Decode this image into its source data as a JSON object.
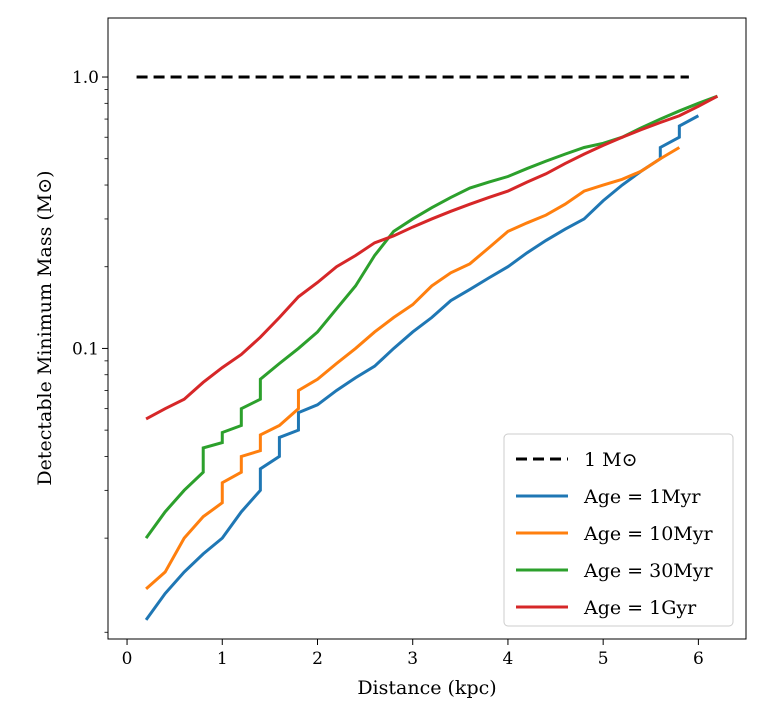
{
  "chart_data": {
    "type": "line",
    "title": "",
    "xlabel": "Distance (kpc)",
    "ylabel": "Detectable Minimum Mass (M⊙)",
    "xlim": [
      -0.2,
      6.5
    ],
    "ylim": [
      0.0085,
      1.65
    ],
    "yscale": "log",
    "grid": false,
    "legend_position": "lower-right",
    "xticks": [
      0,
      1,
      2,
      3,
      4,
      5,
      6
    ],
    "xtick_labels": [
      "0",
      "1",
      "2",
      "3",
      "4",
      "5",
      "6"
    ],
    "yticks": [
      0.1,
      1.0
    ],
    "ytick_labels": [
      "0.1",
      "1.0"
    ],
    "reference_line": {
      "name": "1 M⊙",
      "value": 1.0,
      "x_range": [
        0.1,
        5.9
      ],
      "color": "#000000",
      "dashed": true
    },
    "series": [
      {
        "name": "Age = 1Myr",
        "color": "#1f77b4",
        "x": [
          0.2,
          0.4,
          0.6,
          0.8,
          1.0,
          1.2,
          1.4,
          1.4,
          1.6,
          1.6,
          1.8,
          1.8,
          2.0,
          2.2,
          2.4,
          2.6,
          2.8,
          3.0,
          3.2,
          3.4,
          3.6,
          3.8,
          4.0,
          4.2,
          4.4,
          4.6,
          4.8,
          5.0,
          5.2,
          5.4,
          5.6,
          5.6,
          5.8,
          5.8,
          6.0
        ],
        "y": [
          0.01,
          0.0125,
          0.015,
          0.0175,
          0.02,
          0.025,
          0.03,
          0.036,
          0.04,
          0.047,
          0.05,
          0.058,
          0.062,
          0.07,
          0.078,
          0.086,
          0.1,
          0.115,
          0.13,
          0.15,
          0.165,
          0.182,
          0.2,
          0.225,
          0.25,
          0.275,
          0.3,
          0.35,
          0.4,
          0.45,
          0.5,
          0.55,
          0.6,
          0.66,
          0.72
        ]
      },
      {
        "name": "Age = 10Myr",
        "color": "#ff7f0e",
        "x": [
          0.2,
          0.4,
          0.6,
          0.8,
          1.0,
          1.0,
          1.2,
          1.2,
          1.4,
          1.4,
          1.6,
          1.8,
          1.8,
          2.0,
          2.2,
          2.4,
          2.6,
          2.8,
          3.0,
          3.2,
          3.4,
          3.6,
          3.8,
          4.0,
          4.2,
          4.4,
          4.6,
          4.8,
          5.0,
          5.2,
          5.4,
          5.6,
          5.8
        ],
        "y": [
          0.013,
          0.015,
          0.02,
          0.024,
          0.027,
          0.032,
          0.035,
          0.04,
          0.042,
          0.048,
          0.052,
          0.06,
          0.07,
          0.077,
          0.088,
          0.1,
          0.115,
          0.13,
          0.145,
          0.17,
          0.19,
          0.205,
          0.235,
          0.27,
          0.29,
          0.31,
          0.34,
          0.38,
          0.4,
          0.42,
          0.45,
          0.5,
          0.55
        ]
      },
      {
        "name": "Age = 30Myr",
        "color": "#2ca02c",
        "x": [
          0.2,
          0.4,
          0.6,
          0.8,
          0.8,
          1.0,
          1.0,
          1.2,
          1.2,
          1.4,
          1.4,
          1.6,
          1.8,
          2.0,
          2.2,
          2.4,
          2.6,
          2.8,
          3.0,
          3.2,
          3.4,
          3.6,
          3.8,
          4.0,
          4.2,
          4.4,
          4.6,
          4.8,
          5.0,
          5.2,
          5.4,
          5.6,
          5.8,
          6.0,
          6.2
        ],
        "y": [
          0.02,
          0.025,
          0.03,
          0.035,
          0.043,
          0.045,
          0.049,
          0.052,
          0.06,
          0.065,
          0.077,
          0.088,
          0.1,
          0.115,
          0.14,
          0.17,
          0.22,
          0.27,
          0.3,
          0.33,
          0.36,
          0.39,
          0.41,
          0.43,
          0.46,
          0.49,
          0.52,
          0.55,
          0.57,
          0.6,
          0.65,
          0.7,
          0.75,
          0.8,
          0.85
        ]
      },
      {
        "name": "Age = 1Gyr",
        "color": "#d62728",
        "x": [
          0.2,
          0.4,
          0.6,
          0.8,
          1.0,
          1.2,
          1.4,
          1.6,
          1.8,
          2.0,
          2.2,
          2.4,
          2.6,
          2.8,
          3.0,
          3.2,
          3.4,
          3.6,
          3.8,
          4.0,
          4.2,
          4.4,
          4.6,
          4.8,
          5.0,
          5.2,
          5.4,
          5.6,
          5.8,
          6.0,
          6.2
        ],
        "y": [
          0.055,
          0.06,
          0.065,
          0.075,
          0.085,
          0.095,
          0.11,
          0.13,
          0.155,
          0.175,
          0.2,
          0.22,
          0.245,
          0.26,
          0.28,
          0.3,
          0.32,
          0.34,
          0.36,
          0.38,
          0.41,
          0.44,
          0.48,
          0.52,
          0.56,
          0.6,
          0.64,
          0.68,
          0.72,
          0.78,
          0.85
        ]
      }
    ]
  }
}
